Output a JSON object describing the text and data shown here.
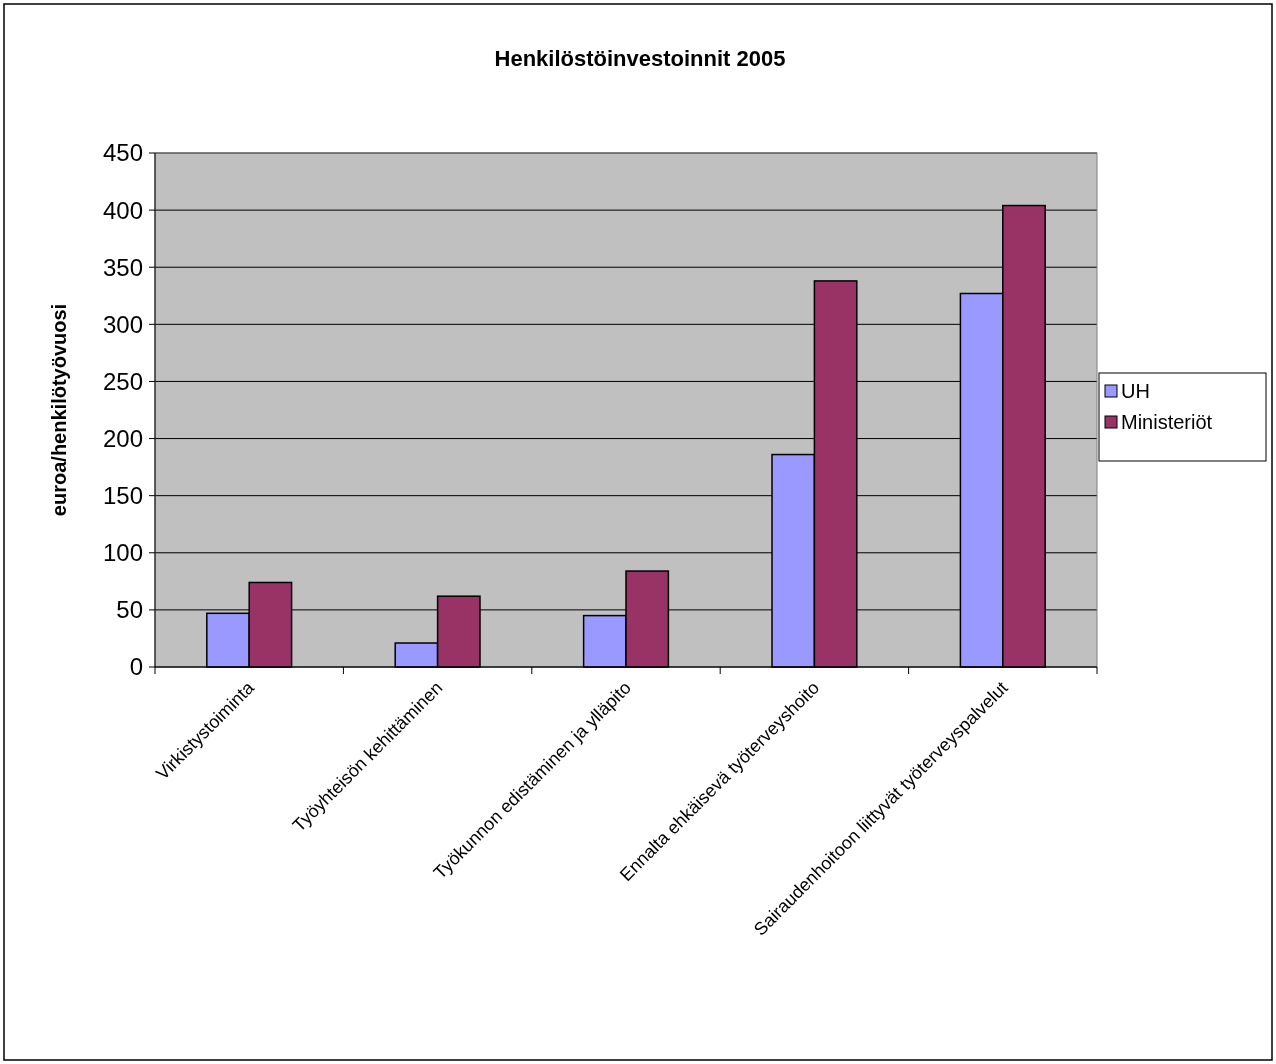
{
  "chart_data": {
    "type": "bar",
    "title": "Henkilöstöinvestoinnit 2005",
    "ylabel": "euroa/henkilötyövuosi",
    "categories": [
      "Virkistystoiminta",
      "Työyhteisön kehittäminen",
      "Työkunnon edistäminen ja ylläpito",
      "Ennalta ehkäisevä työterveyshoito",
      "Sairaudenhoitoon liittyvät työterveyspalvelut"
    ],
    "series": [
      {
        "name": "UH",
        "color": "#9999ff",
        "values": [
          47,
          21,
          45,
          186,
          327
        ]
      },
      {
        "name": "Ministeriöt",
        "color": "#993366",
        "values": [
          74,
          62,
          84,
          338,
          404
        ]
      }
    ],
    "ylim": [
      0,
      450
    ],
    "yticks": [
      0,
      50,
      100,
      150,
      200,
      250,
      300,
      350,
      400,
      450
    ],
    "grid": "y",
    "legend": "right"
  }
}
